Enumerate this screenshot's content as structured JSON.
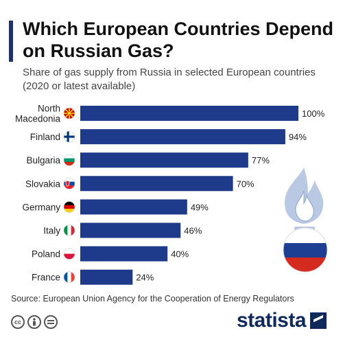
{
  "header": {
    "title": "Which European Countries Depend on Russian Gas?",
    "subtitle": "Share of gas supply from Russia in selected European countries (2020 or latest available)"
  },
  "footer": {
    "source": "Source: European Union Agency for the Cooperation of Energy Regulators",
    "brand": "statista",
    "license_icons": [
      "cc-icon",
      "attribution-icon",
      "no-derivatives-icon"
    ]
  },
  "colors": {
    "bar": "#1e3a8a",
    "accent": "#1e3370",
    "flame": "#b9c8e3"
  },
  "chart_data": {
    "type": "bar",
    "orientation": "horizontal",
    "title": "Which European Countries Depend on Russian Gas?",
    "subtitle": "Share of gas supply from Russia in selected European countries (2020 or latest available)",
    "categories": [
      "North Macedonia",
      "Finland",
      "Bulgaria",
      "Slovakia",
      "Germany",
      "Italy",
      "Poland",
      "France"
    ],
    "category_lines": [
      [
        "North",
        "Macedonia"
      ],
      [
        "Finland"
      ],
      [
        "Bulgaria"
      ],
      [
        "Slovakia"
      ],
      [
        "Germany"
      ],
      [
        "Italy"
      ],
      [
        "Poland"
      ],
      [
        "France"
      ]
    ],
    "values": [
      100,
      94,
      77,
      70,
      49,
      46,
      40,
      24
    ],
    "value_labels": [
      "100%",
      "94%",
      "77%",
      "70%",
      "49%",
      "46%",
      "40%",
      "24%"
    ],
    "flags": [
      "north-macedonia-flag-icon",
      "finland-flag-icon",
      "bulgaria-flag-icon",
      "slovakia-flag-icon",
      "germany-flag-icon",
      "italy-flag-icon",
      "poland-flag-icon",
      "france-flag-icon"
    ],
    "unit": "%",
    "xlim": [
      0,
      100
    ],
    "grid": false,
    "legend": "none"
  }
}
